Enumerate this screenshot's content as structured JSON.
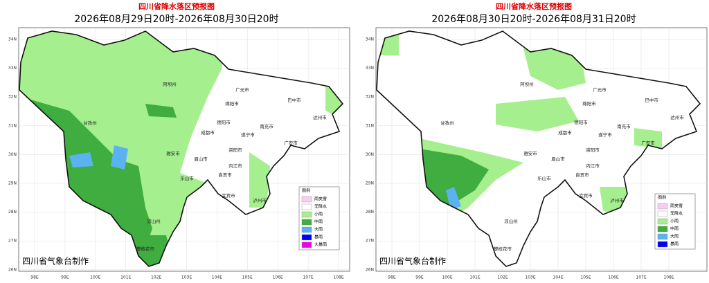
{
  "panels": [
    {
      "title": "四川省降水落区预报图",
      "subtitle": "2026年08月29日20时-2026年08月30日20时",
      "lat_labels": [
        "34N",
        "33N",
        "32N",
        "31N",
        "30N",
        "29N",
        "28N",
        "27N",
        "26N"
      ],
      "lon_labels": [
        "98E",
        "99E",
        "100E",
        "101E",
        "102E",
        "103E",
        "104E",
        "105E",
        "106E",
        "107E",
        "108E"
      ],
      "cities": [
        "阿坝州",
        "广元市",
        "巴中市",
        "绵阳市",
        "甘孜州",
        "德阳市",
        "南充市",
        "达州市",
        "成都市",
        "遂宁市",
        "广安市",
        "雅安市",
        "眉山市",
        "资阳市",
        "乐山市",
        "内江市",
        "自贡市",
        "宜宾市",
        "泸州市",
        "凉山州",
        "攀枝花市"
      ],
      "legend": {
        "title": "图例",
        "items": [
          {
            "label": "雨夹雪",
            "color": "#f9cdf1"
          },
          {
            "label": "无降水",
            "color": "#ffffff"
          },
          {
            "label": "小雨",
            "color": "#a6ef8f"
          },
          {
            "label": "中雨",
            "color": "#3fad3f"
          },
          {
            "label": "大雨",
            "color": "#5ab2f0"
          },
          {
            "label": "暴雨",
            "color": "#0000f5"
          },
          {
            "label": "大暴雨",
            "color": "#f000f0"
          }
        ]
      },
      "footer": "四川省气象台制作"
    },
    {
      "title": "四川省降水落区预报图",
      "subtitle": "2026年08月30日20时-2026年08月31日20时",
      "lat_labels": [
        "34N",
        "33N",
        "32N",
        "31N",
        "30N",
        "29N",
        "28N",
        "27N",
        "26N"
      ],
      "lon_labels": [
        "98E",
        "99E",
        "100E",
        "101E",
        "102E",
        "103E",
        "104E",
        "105E",
        "106E",
        "107E",
        "108E"
      ],
      "cities": [
        "阿坝州",
        "广元市",
        "巴中市",
        "绵阳市",
        "甘孜州",
        "德阳市",
        "南充市",
        "达州市",
        "成都市",
        "遂宁市",
        "广安市",
        "雅安市",
        "眉山市",
        "资阳市",
        "乐山市",
        "内江市",
        "自贡市",
        "宜宾市",
        "泸州市",
        "凉山州",
        "攀枝花市"
      ],
      "legend": {
        "title": "图例",
        "items": [
          {
            "label": "雨夹雪",
            "color": "#f9cdf1"
          },
          {
            "label": "无降水",
            "color": "#ffffff"
          },
          {
            "label": "小雨",
            "color": "#a6ef8f"
          },
          {
            "label": "中雨",
            "color": "#3fad3f"
          },
          {
            "label": "大雨",
            "color": "#5ab2f0"
          },
          {
            "label": "暴雨",
            "color": "#0000f5"
          }
        ]
      },
      "footer": "四川省气象台制作"
    }
  ]
}
